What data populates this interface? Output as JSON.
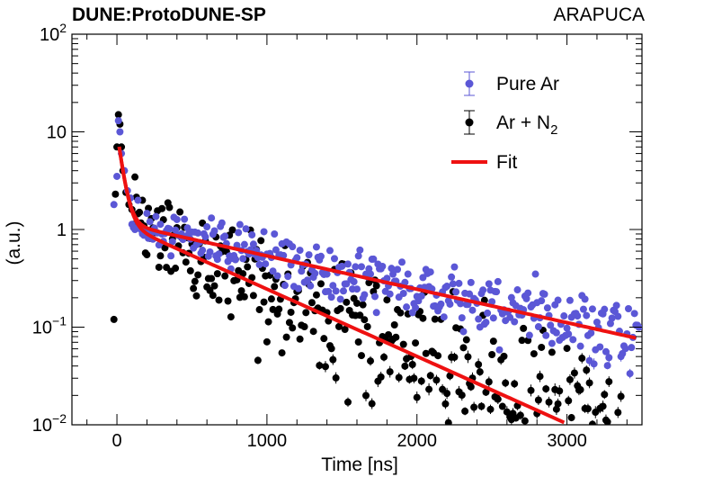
{
  "header": {
    "experiment_label": "DUNE:ProtoDUNE-SP",
    "detector_label": "ARAPUCA"
  },
  "chart_data": {
    "type": "scatter",
    "title": "",
    "xlabel": "Time [ns]",
    "ylabel": "(a.u.)",
    "xlim": [
      -300,
      3500
    ],
    "ylim": [
      0.01,
      100
    ],
    "yscale": "log",
    "x_ticks": [
      {
        "value": 0,
        "label": "0"
      },
      {
        "value": 1000,
        "label": "1000"
      },
      {
        "value": 2000,
        "label": "2000"
      },
      {
        "value": 3000,
        "label": "3000"
      }
    ],
    "y_ticks": [
      {
        "value": 0.01,
        "base": "10",
        "exp": "−2"
      },
      {
        "value": 0.1,
        "base": "10",
        "exp": "−1"
      },
      {
        "value": 1,
        "base": "1",
        "exp": ""
      },
      {
        "value": 10,
        "base": "10",
        "exp": ""
      },
      {
        "value": 100,
        "base": "10",
        "exp": "2"
      }
    ],
    "legend": {
      "position": "top-right",
      "entries": [
        {
          "key": "pure",
          "label": "Pure Ar",
          "label_sub": "",
          "style": "marker-errorbar"
        },
        {
          "key": "n2",
          "label": "Ar + N",
          "label_sub": "2",
          "style": "marker-errorbar"
        },
        {
          "key": "fit",
          "label": "Fit",
          "label_sub": "",
          "style": "line"
        }
      ]
    },
    "colors": {
      "pure": "#5b57d6",
      "n2": "#000000",
      "fit": "#ee1111"
    },
    "series": [
      {
        "name": "Pure Ar",
        "key": "pure",
        "kind": "points",
        "peak_points": [
          [
            -20,
            1.8
          ],
          [
            0,
            3.5
          ],
          [
            10,
            13
          ],
          [
            20,
            10
          ],
          [
            30,
            6
          ],
          [
            50,
            4
          ],
          [
            70,
            2.5
          ],
          [
            90,
            2.1
          ]
        ],
        "model": {
          "t_start": 100,
          "t_end": 3480,
          "step": 10,
          "fast_amp": 2.3,
          "fast_tau": 35,
          "slow_amp": 1.18,
          "slow_tau": 1270,
          "scatter": 0.09
        }
      },
      {
        "name": "Ar + N2",
        "key": "n2",
        "kind": "points",
        "peak_points": [
          [
            -20,
            0.12
          ],
          [
            -10,
            2.3
          ],
          [
            0,
            7
          ],
          [
            10,
            15
          ],
          [
            20,
            12
          ],
          [
            30,
            7
          ],
          [
            40,
            4
          ],
          [
            60,
            2.4
          ],
          [
            80,
            1.8
          ],
          [
            100,
            1.6
          ]
        ],
        "model": {
          "t_start": 110,
          "t_end": 3440,
          "step": 10,
          "fast_amp": 2.0,
          "fast_tau": 35,
          "slow_amp": 1.2,
          "slow_tau": 630,
          "scatter": 0.2,
          "min_value": 0.01
        }
      },
      {
        "name": "Fit (Pure Ar)",
        "key": "fit",
        "kind": "line",
        "model": {
          "t_start": 15,
          "t_end": 3480,
          "fast_amp": 9.0,
          "fast_tau": 35,
          "slow_amp": 1.18,
          "slow_tau": 1270
        }
      },
      {
        "name": "Fit (Ar + N2)",
        "key": "fit",
        "kind": "line",
        "model": {
          "t_start": 15,
          "t_end": 3000,
          "fast_amp": 9.0,
          "fast_tau": 35,
          "slow_amp": 1.2,
          "slow_tau": 630
        }
      }
    ]
  }
}
